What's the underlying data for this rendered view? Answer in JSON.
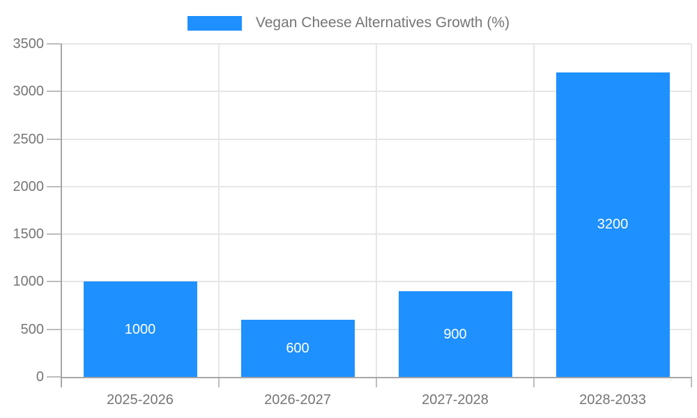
{
  "chart_data": {
    "type": "bar",
    "title": "Vegan Cheese Alternatives Growth (%)",
    "categories": [
      "2025-2026",
      "2026-2027",
      "2027-2028",
      "2028-2033"
    ],
    "values": [
      1000,
      600,
      900,
      3200
    ],
    "bar_value_labels": [
      "1000",
      "600",
      "900",
      "3200"
    ],
    "xlabel": "",
    "ylabel": "",
    "ylim": [
      0,
      3500
    ],
    "ytick_step": 500,
    "ytick_labels": [
      "0",
      "500",
      "1000",
      "1500",
      "2000",
      "2500",
      "3000",
      "3500"
    ],
    "grid": true,
    "legend": {
      "position": "top-center",
      "label": "Vegan Cheese Alternatives Growth (%)"
    },
    "colors": {
      "bar": "#1e90ff",
      "axis": "#a6a6a6",
      "gridline": "#e6e6e6",
      "tick": "#bdbdbd",
      "label": "#757575",
      "value_label": "#ffffff",
      "background": "#ffffff"
    }
  }
}
